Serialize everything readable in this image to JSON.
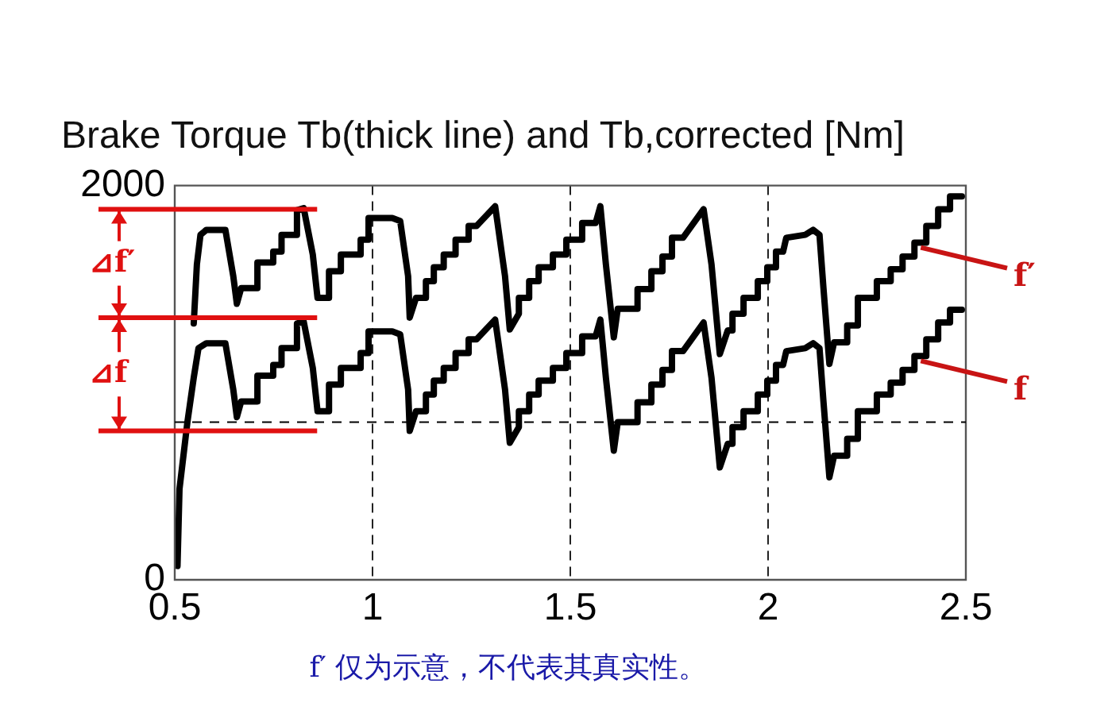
{
  "chart_data": {
    "type": "line",
    "title": "Brake Torque Tb(thick line) and Tb,corrected [Nm]",
    "xlim": [
      0.5,
      2.5
    ],
    "xticks": [
      0.5,
      1,
      1.5,
      2,
      2.5
    ],
    "ylim": [
      0,
      2000
    ],
    "yticks": [
      0,
      2000
    ],
    "grid": "x",
    "legend": false,
    "marker": "none",
    "line_style": "solid",
    "series": [
      {
        "name": "f′",
        "color": "#000000",
        "x": [
          0.548,
          0.556,
          0.565,
          0.58,
          0.628,
          0.648,
          0.657,
          0.668,
          0.709,
          0.709,
          0.749,
          0.749,
          0.77,
          0.77,
          0.809,
          0.809,
          0.826,
          0.849,
          0.861,
          0.89,
          0.89,
          0.92,
          0.92,
          0.97,
          0.97,
          0.99,
          0.99,
          1.05,
          1.07,
          1.09,
          1.094,
          1.11,
          1.135,
          1.135,
          1.155,
          1.155,
          1.18,
          1.18,
          1.21,
          1.21,
          1.243,
          1.243,
          1.263,
          1.31,
          1.315,
          1.335,
          1.347,
          1.37,
          1.37,
          1.396,
          1.396,
          1.42,
          1.42,
          1.456,
          1.456,
          1.49,
          1.49,
          1.53,
          1.53,
          1.564,
          1.576,
          1.59,
          1.61,
          1.62,
          1.67,
          1.67,
          1.705,
          1.705,
          1.733,
          1.733,
          1.757,
          1.757,
          1.785,
          1.837,
          1.857,
          1.878,
          1.898,
          1.91,
          1.91,
          1.938,
          1.938,
          1.974,
          1.974,
          1.998,
          1.998,
          2.02,
          2.02,
          2.038,
          2.046,
          2.094,
          2.114,
          2.13,
          2.14,
          2.155,
          2.167,
          2.2,
          2.2,
          2.227,
          2.227,
          2.275,
          2.275,
          2.31,
          2.31,
          2.34,
          2.34,
          2.37,
          2.37,
          2.4,
          2.4,
          2.43,
          2.43,
          2.46,
          2.46,
          2.49
        ],
        "values": [
          1300,
          1600,
          1750,
          1775,
          1775,
          1540,
          1400,
          1480,
          1480,
          1610,
          1610,
          1665,
          1665,
          1750,
          1750,
          1875,
          1885,
          1650,
          1430,
          1430,
          1565,
          1565,
          1650,
          1650,
          1725,
          1725,
          1835,
          1835,
          1820,
          1540,
          1330,
          1430,
          1430,
          1515,
          1515,
          1585,
          1585,
          1650,
          1650,
          1725,
          1725,
          1795,
          1795,
          1895,
          1825,
          1540,
          1270,
          1350,
          1430,
          1430,
          1515,
          1515,
          1585,
          1585,
          1650,
          1650,
          1725,
          1725,
          1810,
          1810,
          1895,
          1600,
          1230,
          1375,
          1375,
          1475,
          1475,
          1565,
          1565,
          1640,
          1640,
          1735,
          1735,
          1880,
          1600,
          1145,
          1265,
          1265,
          1350,
          1350,
          1430,
          1430,
          1515,
          1515,
          1585,
          1585,
          1665,
          1665,
          1735,
          1750,
          1775,
          1750,
          1480,
          1095,
          1205,
          1205,
          1290,
          1290,
          1430,
          1430,
          1515,
          1515,
          1575,
          1575,
          1640,
          1640,
          1710,
          1710,
          1795,
          1795,
          1880,
          1880,
          1945,
          1945
        ]
      },
      {
        "name": "f",
        "color": "#000000",
        "x": [
          0.507,
          0.512,
          0.532,
          0.548,
          0.56,
          0.58,
          0.628,
          0.648,
          0.657,
          0.668,
          0.709,
          0.709,
          0.749,
          0.749,
          0.77,
          0.77,
          0.809,
          0.809,
          0.826,
          0.849,
          0.861,
          0.89,
          0.89,
          0.92,
          0.92,
          0.97,
          0.97,
          0.99,
          0.99,
          1.05,
          1.07,
          1.09,
          1.094,
          1.11,
          1.135,
          1.135,
          1.155,
          1.155,
          1.18,
          1.18,
          1.21,
          1.21,
          1.243,
          1.243,
          1.263,
          1.31,
          1.315,
          1.335,
          1.347,
          1.37,
          1.37,
          1.396,
          1.396,
          1.42,
          1.42,
          1.456,
          1.456,
          1.49,
          1.49,
          1.53,
          1.53,
          1.564,
          1.576,
          1.59,
          1.61,
          1.62,
          1.67,
          1.67,
          1.705,
          1.705,
          1.733,
          1.733,
          1.757,
          1.757,
          1.785,
          1.837,
          1.857,
          1.878,
          1.898,
          1.91,
          1.91,
          1.938,
          1.938,
          1.974,
          1.974,
          1.998,
          1.998,
          2.02,
          2.02,
          2.038,
          2.046,
          2.094,
          2.114,
          2.13,
          2.14,
          2.155,
          2.167,
          2.2,
          2.2,
          2.227,
          2.227,
          2.275,
          2.275,
          2.31,
          2.31,
          2.34,
          2.34,
          2.37,
          2.37,
          2.4,
          2.4,
          2.43,
          2.43,
          2.46,
          2.46,
          2.49
        ],
        "values": [
          70,
          460,
          800,
          1025,
          1175,
          1200,
          1200,
          965,
          825,
          905,
          905,
          1035,
          1035,
          1090,
          1090,
          1175,
          1175,
          1300,
          1310,
          1075,
          855,
          855,
          990,
          990,
          1075,
          1075,
          1150,
          1150,
          1260,
          1260,
          1245,
          965,
          755,
          855,
          855,
          940,
          940,
          1010,
          1010,
          1075,
          1075,
          1150,
          1150,
          1220,
          1220,
          1320,
          1250,
          965,
          695,
          775,
          855,
          855,
          940,
          940,
          1010,
          1010,
          1075,
          1075,
          1150,
          1150,
          1235,
          1235,
          1320,
          1025,
          655,
          800,
          800,
          900,
          900,
          990,
          990,
          1065,
          1065,
          1160,
          1160,
          1305,
          1025,
          570,
          690,
          690,
          775,
          775,
          855,
          855,
          940,
          940,
          1010,
          1010,
          1090,
          1090,
          1160,
          1175,
          1200,
          1175,
          905,
          520,
          630,
          630,
          715,
          715,
          855,
          855,
          940,
          940,
          1000,
          1000,
          1065,
          1065,
          1135,
          1135,
          1220,
          1220,
          1305,
          1305,
          1370,
          1370
        ]
      }
    ],
    "ref_lines": [
      {
        "axis": "y",
        "value": 800,
        "color": "#000000",
        "line_style": "dashed"
      },
      {
        "axis": "y",
        "value": 1880,
        "color": "#e01010",
        "line_style": "solid"
      },
      {
        "axis": "y",
        "value": 1330,
        "color": "#e01010",
        "line_style": "solid"
      },
      {
        "axis": "y",
        "value": 755,
        "color": "#e01010",
        "line_style": "solid"
      }
    ],
    "annotations": [
      "⊿f′",
      "⊿f",
      "f′ 仅为示意，不代表其真实性。"
    ]
  }
}
